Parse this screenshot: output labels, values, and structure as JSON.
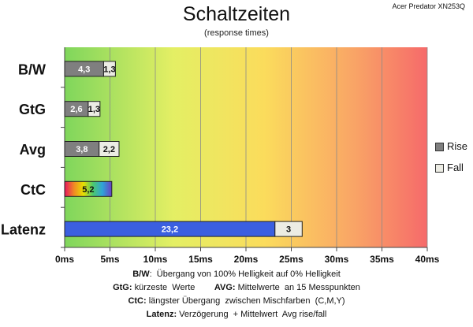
{
  "title": "Schaltzeiten",
  "subtitle": "(response times)",
  "brand": "Acer Predator XN253Q",
  "legend": {
    "rise": "Rise",
    "fall": "Fall"
  },
  "colors": {
    "rise": "#7f7f7f",
    "fall": "#ecece4",
    "latenz": "#3b5fe0"
  },
  "footnotes": [
    {
      "key": "B/W",
      "text": ":  Übergang von 100% Helligkeit auf 0% Helligkeit"
    },
    {
      "key": "GtG:",
      "text": " kürzeste  Werte        ",
      "key2": "AVG:",
      "text2": " Mittelwerte  an 15 Messpunkten"
    },
    {
      "key": "CtC:",
      "text": " längster Übergang  zwischen Mischfarben  (C,M,Y)"
    },
    {
      "key": "Latenz:",
      "text": " Verzögerung  + Mittelwert  Avg rise/fall"
    }
  ],
  "chart_data": {
    "type": "bar",
    "stacked": true,
    "orientation": "horizontal",
    "categories": [
      "B/W",
      "GtG",
      "Avg",
      "CtC",
      "Latenz"
    ],
    "series": [
      {
        "name": "Rise",
        "values": [
          4.3,
          2.6,
          3.8,
          5.2,
          23.2
        ],
        "labels": [
          "4,3",
          "2,6",
          "3,8",
          "5,2",
          "23,2"
        ]
      },
      {
        "name": "Fall",
        "values": [
          1.3,
          1.3,
          2.2,
          0,
          3
        ],
        "labels": [
          "1,3",
          "1,3",
          "2,2",
          "",
          "3"
        ]
      }
    ],
    "x_ticks": [
      "0ms",
      "5ms",
      "10ms",
      "15ms",
      "20ms",
      "25ms",
      "30ms",
      "35ms",
      "40ms"
    ],
    "xlim": [
      0,
      40
    ],
    "grid": true,
    "background": "gradient green-yellow-red",
    "legend_position": "right"
  }
}
